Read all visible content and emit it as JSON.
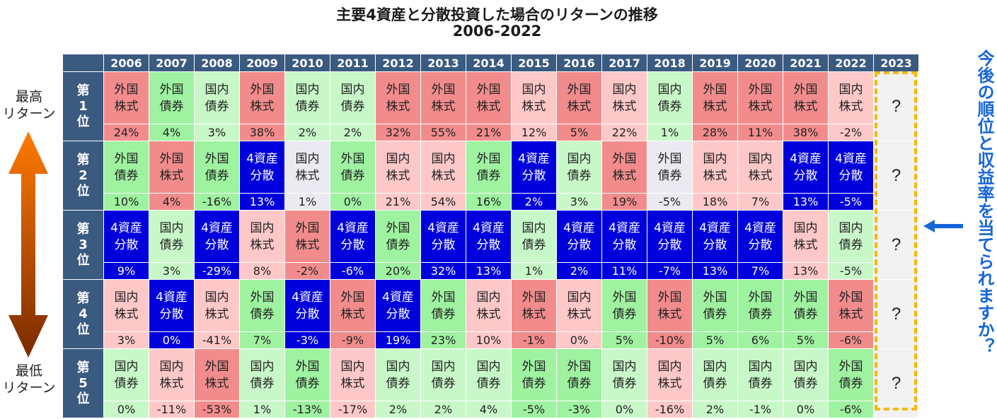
{
  "title": {
    "line1": "主要4資産と分散投資した場合のリターンの推移",
    "line2": "2006-2022"
  },
  "left_labels": {
    "high": "最高\nリターン",
    "low": "最低\nリターン"
  },
  "right_question": "今後の順位と収益率を当てられますか？",
  "future": {
    "year": "2023",
    "mark": "?"
  },
  "ranks": [
    "第1位",
    "第2位",
    "第3位",
    "第4位",
    "第5位"
  ],
  "colors": {
    "外国株式": "#f28c8c",
    "外国債券": "#9ef2a0",
    "国内債券": "#c8f8c8",
    "国内株式": "#ffc8c8",
    "4資産分散": "#0000dd",
    "default": "#eaeaf0",
    "header": "#3a5a80",
    "future_border": "#f5b800",
    "accent": "#1666d8"
  },
  "chart_data": {
    "type": "table",
    "title": "主要4資産と分散投資した場合のリターンの推移 2006-2022",
    "years": [
      "2006",
      "2007",
      "2008",
      "2009",
      "2010",
      "2011",
      "2012",
      "2013",
      "2014",
      "2015",
      "2016",
      "2017",
      "2018",
      "2019",
      "2020",
      "2021",
      "2022"
    ],
    "rows": [
      {
        "rank": "第1位",
        "assets": [
          "外国株式",
          "外国債券",
          "国内債券",
          "外国株式",
          "国内債券",
          "国内債券",
          "外国株式",
          "外国株式",
          "外国株式",
          "国内株式",
          "外国株式",
          "国内株式",
          "国内債券",
          "外国株式",
          "外国株式",
          "外国株式",
          "国内株式"
        ],
        "returns": [
          "24%",
          "4%",
          "3%",
          "38%",
          "2%",
          "2%",
          "32%",
          "55%",
          "21%",
          "12%",
          "5%",
          "22%",
          "1%",
          "28%",
          "11%",
          "38%",
          "-2%"
        ]
      },
      {
        "rank": "第2位",
        "assets": [
          "外国債券",
          "外国株式",
          "外国債券",
          "4資産分散",
          "国内株式",
          "外国債券",
          "国内株式",
          "国内株式",
          "外国債券",
          "4資産分散",
          "国内債券",
          "外国株式",
          "外国債券",
          "国内株式",
          "国内株式",
          "4資産分散",
          "4資産分散"
        ],
        "returns": [
          "10%",
          "4%",
          "-16%",
          "13%",
          "1%",
          "0%",
          "21%",
          "54%",
          "16%",
          "2%",
          "3%",
          "19%",
          "-5%",
          "18%",
          "7%",
          "13%",
          "-5%"
        ]
      },
      {
        "rank": "第3位",
        "assets": [
          "4資産分散",
          "国内債券",
          "4資産分散",
          "国内株式",
          "外国株式",
          "4資産分散",
          "外国債券",
          "4資産分散",
          "4資産分散",
          "国内債券",
          "4資産分散",
          "4資産分散",
          "4資産分散",
          "4資産分散",
          "4資産分散",
          "国内株式",
          "国内債券"
        ],
        "returns": [
          "9%",
          "3%",
          "-29%",
          "8%",
          "-2%",
          "-6%",
          "20%",
          "32%",
          "13%",
          "1%",
          "2%",
          "11%",
          "-7%",
          "13%",
          "7%",
          "13%",
          "-5%"
        ]
      },
      {
        "rank": "第4位",
        "assets": [
          "国内株式",
          "4資産分散",
          "国内株式",
          "外国債券",
          "4資産分散",
          "外国株式",
          "4資産分散",
          "外国債券",
          "国内株式",
          "外国株式",
          "国内株式",
          "外国債券",
          "外国株式",
          "外国債券",
          "外国債券",
          "外国債券",
          "外国株式"
        ],
        "returns": [
          "3%",
          "0%",
          "-41%",
          "7%",
          "-3%",
          "-9%",
          "19%",
          "23%",
          "10%",
          "-1%",
          "0%",
          "5%",
          "-10%",
          "5%",
          "6%",
          "5%",
          "-6%"
        ]
      },
      {
        "rank": "第5位",
        "assets": [
          "国内債券",
          "国内株式",
          "外国株式",
          "国内債券",
          "外国債券",
          "国内株式",
          "国内債券",
          "国内債券",
          "国内債券",
          "外国債券",
          "外国債券",
          "国内債券",
          "国内株式",
          "国内債券",
          "国内債券",
          "国内債券",
          "外国債券"
        ],
        "returns": [
          "0%",
          "-11%",
          "-53%",
          "1%",
          "-13%",
          "-17%",
          "2%",
          "2%",
          "4%",
          "-5%",
          "-3%",
          "0%",
          "-16%",
          "2%",
          "-1%",
          "0%",
          "-6%"
        ]
      }
    ],
    "special_colors": {
      "第2位|2010": "#eaeaf0",
      "第2位|2018": "#eaeaf0"
    }
  }
}
